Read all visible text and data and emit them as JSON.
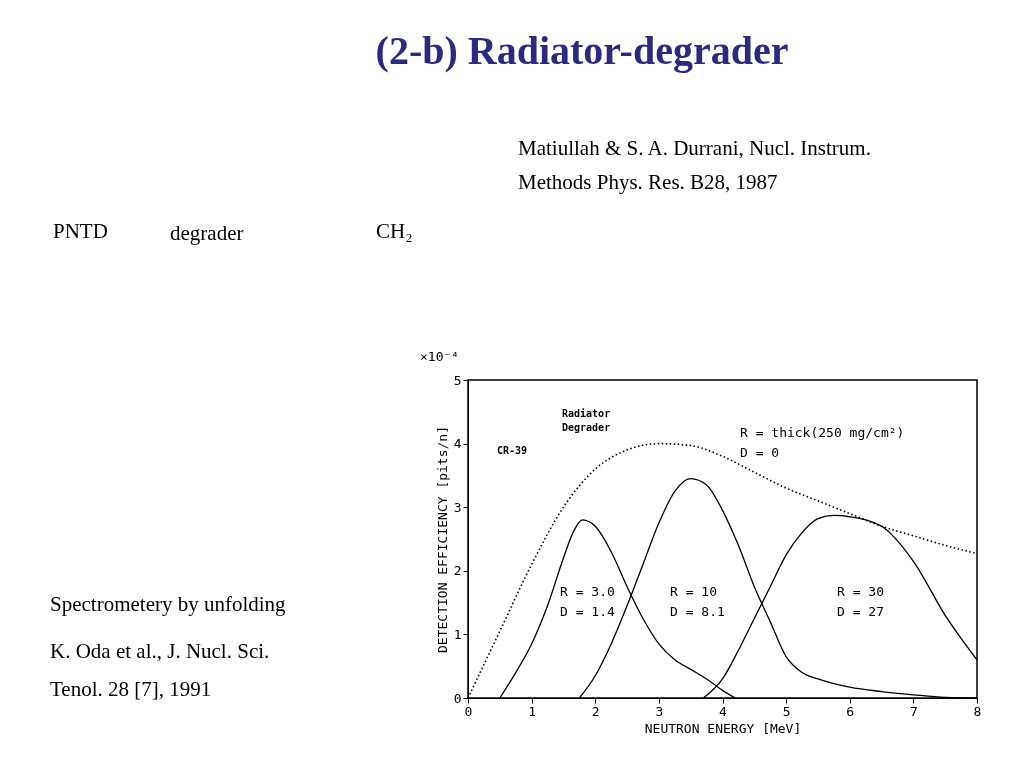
{
  "chart_data": {
    "type": "line",
    "title": "(2-b) Radiator-degrader",
    "xlabel": "NEUTRON ENERGY [MeV]",
    "ylabel": "DETECTION EFFICIENCY [pits/n]",
    "xlim": [
      0,
      8
    ],
    "xticks": [
      0,
      1,
      2,
      3,
      4,
      5,
      6,
      7,
      8
    ],
    "ylim": [
      0,
      5
    ],
    "yticks": [
      0,
      1,
      2,
      3,
      4,
      5
    ],
    "grid": false,
    "marker": "none",
    "series": [
      {
        "color": "#000000",
        "line_style": "dotted",
        "x": [
          0,
          0.5,
          1,
          1.5,
          2,
          2.5,
          3,
          3.5,
          4,
          4.5,
          5,
          5.5,
          6,
          6.5,
          7,
          7.5,
          8
        ],
        "values": [
          0,
          1.05,
          2.1,
          3.0,
          3.6,
          3.9,
          4.0,
          3.97,
          3.8,
          3.55,
          3.3,
          3.1,
          2.9,
          2.7,
          2.55,
          2.4,
          2.27
        ]
      },
      {
        "color": "#000000",
        "line_style": "solid",
        "x": [
          0.5,
          0.75,
          1,
          1.25,
          1.5,
          1.65,
          1.8,
          2.0,
          2.25,
          2.5,
          2.75,
          3,
          3.25,
          3.5,
          3.75,
          4,
          4.2
        ],
        "values": [
          0,
          0.4,
          0.85,
          1.45,
          2.2,
          2.6,
          2.8,
          2.7,
          2.3,
          1.75,
          1.25,
          0.85,
          0.6,
          0.45,
          0.3,
          0.12,
          0
        ]
      },
      {
        "color": "#000000",
        "line_style": "solid",
        "x": [
          1.75,
          2,
          2.25,
          2.5,
          2.75,
          3,
          3.25,
          3.5,
          3.75,
          4,
          4.25,
          4.5,
          4.75,
          5,
          5.25,
          5.5,
          6,
          6.5,
          7,
          7.5,
          8
        ],
        "values": [
          0,
          0.35,
          0.85,
          1.45,
          2.1,
          2.75,
          3.25,
          3.45,
          3.35,
          2.95,
          2.4,
          1.75,
          1.2,
          0.65,
          0.4,
          0.3,
          0.17,
          0.1,
          0.05,
          0.01,
          0
        ]
      },
      {
        "color": "#000000",
        "line_style": "solid",
        "x": [
          3.7,
          4,
          4.25,
          4.5,
          4.75,
          5,
          5.25,
          5.5,
          5.75,
          6,
          6.5,
          7,
          7.5,
          8
        ],
        "values": [
          0,
          0.3,
          0.75,
          1.25,
          1.75,
          2.25,
          2.6,
          2.82,
          2.87,
          2.85,
          2.7,
          2.15,
          1.3,
          0.6
        ]
      }
    ],
    "annotations": [
      "R = 3.0",
      "D = 1.4",
      "R = 10",
      "D = 8.1",
      "R = 30",
      "D = 27",
      "R = thick(250 mg/cm²)",
      "D = 0",
      "×10⁻⁴",
      "Radiator",
      "Degrader",
      "CR-39",
      "Matiullah & S. A. Durrani, Nucl. Instrum.",
      "Methods Phys. Res. B28, 1987",
      "PNTD",
      "degrader",
      "CH₂",
      "Spectrometery by unfolding",
      "K. Oda et al., J. Nucl. Sci.",
      "Tenol. 28 [7], 1991"
    ]
  }
}
